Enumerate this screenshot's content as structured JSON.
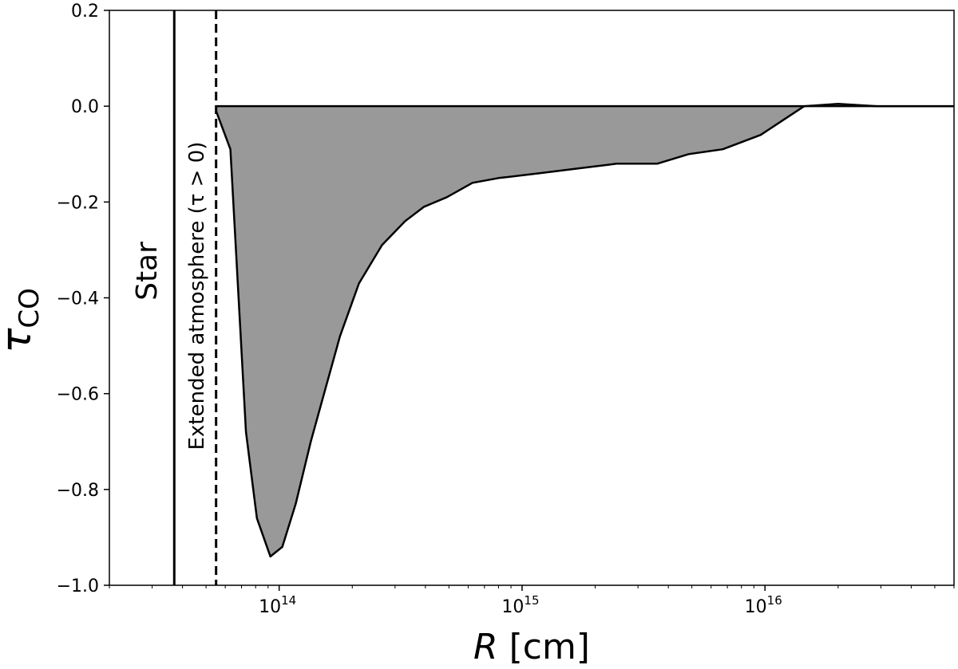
{
  "chart_data": {
    "type": "area",
    "xscale": "log",
    "xlabel": "R [cm]",
    "ylabel": "τCO",
    "xlim": [
      20000000000000.0,
      6e+16
    ],
    "ylim": [
      -1.0,
      0.2
    ],
    "yticks": [
      {
        "value": 0.2,
        "label": "0.2"
      },
      {
        "value": 0.0,
        "label": "0.0"
      },
      {
        "value": -0.2,
        "label": "−0.2"
      },
      {
        "value": -0.4,
        "label": "−0.4"
      },
      {
        "value": -0.6,
        "label": "−0.6"
      },
      {
        "value": -0.8,
        "label": "−0.8"
      },
      {
        "value": -1.0,
        "label": "−1.0"
      }
    ],
    "xticks": [
      {
        "value": 100000000000000.0,
        "base": "10",
        "exp": "14"
      },
      {
        "value": 1000000000000000.0,
        "base": "10",
        "exp": "15"
      },
      {
        "value": 1e+16,
        "base": "10",
        "exp": "16"
      }
    ],
    "series": [
      {
        "fill_color": "#999999",
        "line_color": "#000000",
        "x": [
          55000000000000.0,
          63000000000000.0,
          73000000000000.0,
          81000000000000.0,
          92000000000000.0,
          103000000000000.0,
          117000000000000.0,
          135000000000000.0,
          153000000000000.0,
          178000000000000.0,
          213000000000000.0,
          265000000000000.0,
          330000000000000.0,
          395000000000000.0,
          490000000000000.0,
          625000000000000.0,
          800000000000000.0,
          1180000000000000.0,
          1700000000000000.0,
          2450000000000000.0,
          3600000000000000.0,
          4850000000000000.0,
          6700000000000000.0,
          9600000000000000.0,
          1.45e+16,
          2e+16,
          2.9e+16,
          6e+16
        ],
        "y": [
          -0.01,
          -0.09,
          -0.68,
          -0.86,
          -0.94,
          -0.92,
          -0.83,
          -0.7,
          -0.6,
          -0.48,
          -0.37,
          -0.29,
          -0.24,
          -0.21,
          -0.19,
          -0.16,
          -0.15,
          -0.14,
          -0.13,
          -0.12,
          -0.12,
          -0.1,
          -0.09,
          -0.06,
          0.0,
          0.005,
          0.0,
          0.0
        ]
      }
    ],
    "reference_lines": [
      {
        "x": 37000000000000.0,
        "style": "solid",
        "label": "Star"
      },
      {
        "x": 55000000000000.0,
        "style": "dashed",
        "label": "Extended atmosphere (τ > 0)"
      }
    ],
    "zero_line": 0.0,
    "grid": false
  }
}
